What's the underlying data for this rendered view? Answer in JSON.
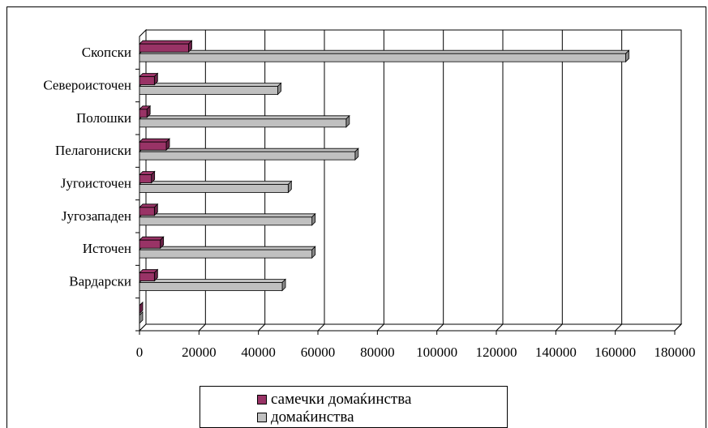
{
  "chart_data": {
    "type": "bar",
    "orientation": "horizontal",
    "categories": [
      "",
      "Вардарски",
      "Источен",
      "Југозападен",
      "Југоисточен",
      "Пелагониски",
      "Полошки",
      "Североисточен",
      "Скопски"
    ],
    "series": [
      {
        "name": "самечки домаќинства",
        "color": "#993366",
        "values": [
          0,
          5000,
          7000,
          5000,
          4000,
          9000,
          2500,
          5000,
          16500
        ]
      },
      {
        "name": "домаќинства",
        "color": "#c0c0c0",
        "values": [
          0,
          48000,
          58000,
          58000,
          50000,
          72500,
          69500,
          46500,
          163500
        ]
      }
    ],
    "xticks": [
      "0",
      "20000",
      "40000",
      "60000",
      "80000",
      "100000",
      "120000",
      "140000",
      "160000",
      "180000"
    ],
    "xlim": [
      0,
      180000
    ],
    "grid": true,
    "legend_position": "bottom"
  }
}
